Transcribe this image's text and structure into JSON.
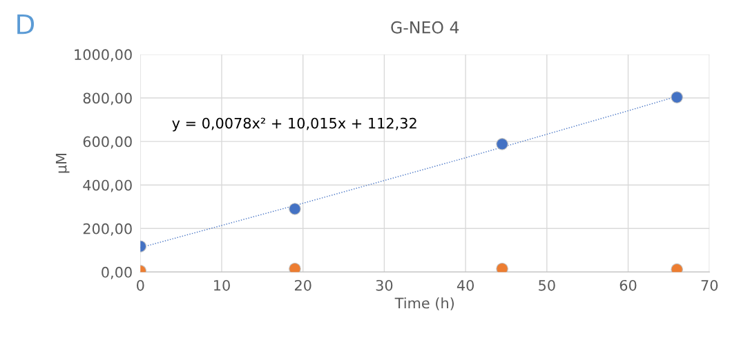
{
  "chart_data": {
    "type": "scatter",
    "title": "G-NEO 4",
    "xlabel": "Time (h)",
    "ylabel": "µM",
    "annotations": [
      "D",
      "y = 0,0078x² + 10,015x + 112,32"
    ],
    "series": [
      {
        "color": "#4472c4",
        "x": [
          0,
          19,
          44.5,
          66
        ],
        "values": [
          118,
          290,
          588,
          803
        ]
      },
      {
        "color": "#ed7d31",
        "x": [
          0,
          19,
          44.5,
          66
        ],
        "values": [
          5,
          15,
          15,
          12
        ]
      },
      {
        "type": "line",
        "color": "#4472c4",
        "line_style": "dotted",
        "marker": "none",
        "x": [
          0,
          20,
          40,
          60,
          66
        ],
        "values": [
          112,
          316,
          525,
          741,
          807
        ]
      }
    ],
    "marker": "circle",
    "xlim": [
      0,
      70
    ],
    "xticks": [
      0,
      10,
      20,
      30,
      40,
      50,
      60,
      70
    ],
    "ylim": [
      0,
      1000
    ],
    "yticks": [
      {
        "value": 0,
        "label": "0,00"
      },
      {
        "value": 200,
        "label": "200,00"
      },
      {
        "value": 400,
        "label": "400,00"
      },
      {
        "value": 600,
        "label": "600,00"
      },
      {
        "value": 800,
        "label": "800,00"
      },
      {
        "value": 1000,
        "label": "1000,00"
      }
    ],
    "grid": true
  }
}
